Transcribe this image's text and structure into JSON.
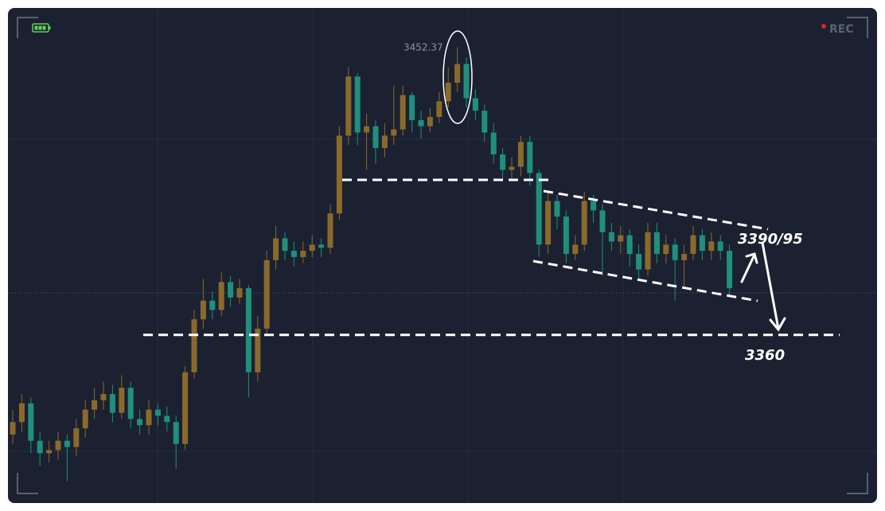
{
  "overlay": {
    "rec": "REC"
  },
  "chart_data": {
    "type": "candlestick",
    "up_color": "#8a6a2c",
    "down_color": "#1f8f7e",
    "ylim": [
      3306,
      3465
    ],
    "open": [
      3328,
      3332,
      3338,
      3326,
      3322,
      3323,
      3326,
      3324,
      3330,
      3336,
      3339,
      3341,
      3335,
      3343,
      3333,
      3331,
      3336,
      3334,
      3332,
      3325,
      3348,
      3365,
      3371,
      3368,
      3377,
      3372,
      3375,
      3348,
      3362,
      3384,
      3391,
      3387,
      3385,
      3387,
      3389,
      3388,
      3399,
      3424,
      3443,
      3425,
      3427,
      3420,
      3424,
      3426,
      3437,
      3429,
      3427,
      3430,
      3435,
      3441,
      3447,
      3436,
      3432,
      3425,
      3418,
      3413,
      3414,
      3422,
      3412,
      3389,
      3403,
      3398,
      3386,
      3389,
      3403,
      3400,
      3393,
      3390,
      3392,
      3386,
      3381,
      3393,
      3386,
      3389,
      3384,
      3386,
      3392,
      3387,
      3390,
      3387
    ],
    "high": [
      3336,
      3341,
      3340,
      3329,
      3326,
      3329,
      3328,
      3333,
      3339,
      3343,
      3345,
      3344,
      3347,
      3345,
      3336,
      3339,
      3338,
      3337,
      3334,
      3350,
      3368,
      3378,
      3374,
      3380,
      3379,
      3378,
      3376,
      3366,
      3387,
      3395,
      3393,
      3390,
      3390,
      3392,
      3391,
      3402,
      3427,
      3446,
      3444,
      3431,
      3429,
      3428,
      3440,
      3440,
      3438,
      3432,
      3433,
      3438,
      3446,
      3452.37,
      3449,
      3439,
      3434,
      3428,
      3420,
      3417,
      3424,
      3424,
      3413,
      3406,
      3405,
      3400,
      3392,
      3406,
      3405,
      3402,
      3396,
      3395,
      3394,
      3389,
      3396,
      3396,
      3392,
      3391,
      3389,
      3395,
      3394,
      3393,
      3392,
      3389
    ],
    "low": [
      3325,
      3329,
      3322,
      3318,
      3319,
      3320,
      3313,
      3321,
      3327,
      3333,
      3336,
      3332,
      3333,
      3330,
      3328,
      3328,
      3331,
      3329,
      3317,
      3323,
      3346,
      3362,
      3365,
      3366,
      3369,
      3370,
      3340,
      3345,
      3360,
      3381,
      3384,
      3382,
      3383,
      3385,
      3385,
      3386,
      3397,
      3421,
      3421,
      3413,
      3415,
      3417,
      3421,
      3424,
      3425,
      3423,
      3425,
      3428,
      3433,
      3438,
      3433,
      3429,
      3422,
      3415,
      3410,
      3410,
      3411,
      3408,
      3385,
      3386,
      3394,
      3383,
      3384,
      3387,
      3396,
      3379,
      3387,
      3386,
      3382,
      3378,
      3379,
      3383,
      3383,
      3371,
      3375,
      3384,
      3384,
      3384,
      3384,
      3373
    ],
    "close": [
      3332,
      3338,
      3326,
      3322,
      3323,
      3326,
      3324,
      3330,
      3336,
      3339,
      3341,
      3335,
      3343,
      3333,
      3331,
      3336,
      3334,
      3332,
      3325,
      3348,
      3365,
      3371,
      3368,
      3377,
      3372,
      3375,
      3348,
      3362,
      3384,
      3391,
      3387,
      3385,
      3387,
      3389,
      3388,
      3399,
      3424,
      3443,
      3425,
      3427,
      3420,
      3424,
      3426,
      3437,
      3429,
      3427,
      3430,
      3435,
      3441,
      3447,
      3436,
      3432,
      3425,
      3418,
      3413,
      3414,
      3422,
      3412,
      3389,
      3403,
      3398,
      3386,
      3389,
      3403,
      3400,
      3393,
      3390,
      3392,
      3386,
      3381,
      3393,
      3386,
      3389,
      3384,
      3386,
      3392,
      3387,
      3390,
      3387,
      3375
    ],
    "annotations": {
      "target_label": "3390/95",
      "support": 3360
    }
  }
}
